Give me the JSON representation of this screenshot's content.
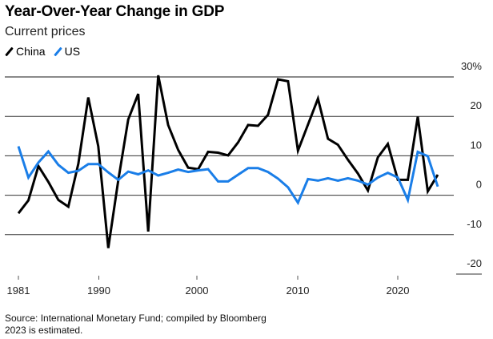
{
  "chart_data": {
    "type": "line",
    "title": "Year-Over-Year Change in GDP",
    "subtitle": "Current prices",
    "xlabel": "",
    "ylabel": "",
    "x": [
      1981,
      1982,
      1983,
      1984,
      1985,
      1986,
      1987,
      1988,
      1989,
      1990,
      1991,
      1992,
      1993,
      1994,
      1995,
      1996,
      1997,
      1998,
      1999,
      2000,
      2001,
      2002,
      2003,
      2004,
      2005,
      2006,
      2007,
      2008,
      2009,
      2010,
      2011,
      2012,
      2013,
      2014,
      2015,
      2016,
      2017,
      2018,
      2019,
      2020,
      2021,
      2022,
      2023
    ],
    "series": [
      {
        "name": "China",
        "color": "#000000",
        "values": [
          -4.6,
          -1.3,
          7.4,
          3.4,
          -1.2,
          -2.9,
          8.0,
          24.8,
          12.4,
          -13.4,
          3.8,
          19.2,
          25.7,
          -9.2,
          30.4,
          17.8,
          11.5,
          7.0,
          6.6,
          11.0,
          10.8,
          10.1,
          13.4,
          17.8,
          17.6,
          20.4,
          29.4,
          28.9,
          11.3,
          17.9,
          24.5,
          14.3,
          12.8,
          9.0,
          5.5,
          1.2,
          9.6,
          13.0,
          3.9,
          3.9,
          19.9,
          1.0,
          5.2
        ]
      },
      {
        "name": "US",
        "color": "#1a7ee8",
        "values": [
          12.4,
          4.5,
          8.3,
          11.1,
          7.7,
          5.7,
          6.2,
          7.9,
          7.9,
          5.8,
          3.9,
          6.0,
          5.3,
          6.3,
          5.0,
          5.7,
          6.5,
          5.9,
          6.3,
          6.6,
          3.5,
          3.5,
          5.2,
          6.9,
          6.9,
          5.9,
          4.2,
          2.0,
          -1.9,
          4.1,
          3.7,
          4.3,
          3.7,
          4.3,
          3.7,
          2.7,
          4.5,
          5.7,
          4.5,
          -1.2,
          11.0,
          9.9,
          2.2
        ]
      }
    ],
    "y_ticks": [
      30,
      20,
      10,
      0,
      -10,
      -20
    ],
    "y_tick_labels": [
      "30%",
      "20",
      "10",
      "0",
      "-10",
      "-20"
    ],
    "x_ticks": [
      1981,
      1990,
      2000,
      2010,
      2020
    ],
    "x_tick_labels": [
      "1981",
      "1990",
      "2000",
      "2010",
      "2020"
    ],
    "ylim": [
      -20,
      30
    ],
    "xlim": [
      1981,
      2023
    ],
    "grid": true,
    "legend_position": "top-left",
    "source": "Source: International Monetary Fund; compiled by Bloomberg",
    "note": "2023 is estimated."
  }
}
